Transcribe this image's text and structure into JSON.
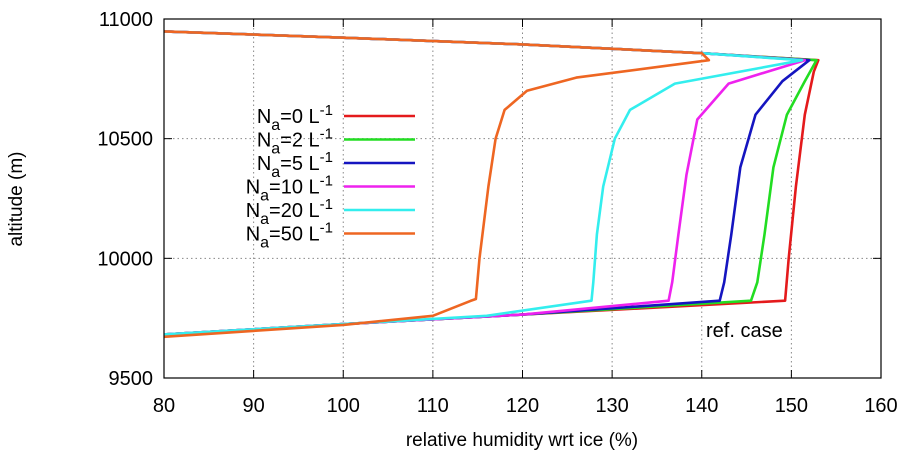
{
  "chart_data": {
    "type": "line",
    "title": "",
    "xlabel": "relative humidity wrt ice (%)",
    "ylabel": "altitude (m)",
    "xlim": [
      80,
      160
    ],
    "ylim": [
      9500,
      11000
    ],
    "xticks": [
      "80",
      "90",
      "100",
      "110",
      "120",
      "130",
      "140",
      "150",
      "160"
    ],
    "yticks": [
      "9500",
      "10000",
      "10500",
      "11000"
    ],
    "grid": true,
    "legend_position": "left",
    "annotation": "ref. case",
    "series": [
      {
        "name": "Na=0 L-1",
        "legend": {
          "base": "N",
          "sub": "a",
          "mid": "=0 L",
          "sup": "-1"
        },
        "color": "#e41a1c",
        "x": [
          80,
          100,
          120,
          149.3,
          149.7,
          150.5,
          151.5,
          152.5,
          153.0,
          140.0,
          120.0,
          100.0,
          80.0
        ],
        "y": [
          9682,
          9725,
          9765,
          9823,
          10000,
          10300,
          10600,
          10780,
          10828,
          10857,
          10894,
          10922,
          10948
        ]
      },
      {
        "name": "Na=2 L-1",
        "legend": {
          "base": "N",
          "sub": "a",
          "mid": "=2 L",
          "sup": "-1"
        },
        "color": "#22dd22",
        "x": [
          80,
          100,
          120,
          145.5,
          146.2,
          147.0,
          148.0,
          149.5,
          151.5,
          152.8,
          140.0,
          120.0,
          100.0,
          80.0
        ],
        "y": [
          9682,
          9725,
          9765,
          9823,
          9900,
          10100,
          10380,
          10600,
          10740,
          10828,
          10857,
          10894,
          10922,
          10948
        ]
      },
      {
        "name": "Na=5 L-1",
        "legend": {
          "base": "N",
          "sub": "a",
          "mid": "=5 L",
          "sup": "-1"
        },
        "color": "#1515c0",
        "x": [
          80,
          100,
          120,
          142.0,
          142.5,
          143.3,
          144.3,
          146.0,
          149.0,
          152.0,
          140.0,
          120.0,
          100.0,
          80.0
        ],
        "y": [
          9682,
          9725,
          9765,
          9823,
          9900,
          10100,
          10380,
          10600,
          10740,
          10828,
          10857,
          10894,
          10922,
          10948
        ]
      },
      {
        "name": "Na=10 L-1",
        "legend": {
          "base": "N",
          "sub": "a",
          "mid": "=10 L",
          "sup": "-1"
        },
        "color": "#ee22ee",
        "x": [
          80,
          100,
          120,
          136.3,
          136.7,
          137.4,
          138.3,
          139.5,
          143.0,
          151.5,
          140.0,
          120.0,
          100.0,
          80.0
        ],
        "y": [
          9682,
          9725,
          9765,
          9823,
          9900,
          10100,
          10350,
          10580,
          10730,
          10828,
          10857,
          10894,
          10922,
          10948
        ]
      },
      {
        "name": "Na=20 L-1",
        "legend": {
          "base": "N",
          "sub": "a",
          "mid": "=20 L",
          "sup": "-1"
        },
        "color": "#33eeee",
        "x": [
          80,
          100,
          116,
          127.7,
          127.9,
          128.3,
          129.0,
          130.3,
          132.0,
          137.0,
          151.2,
          140.0,
          120.0,
          100.0,
          80.0
        ],
        "y": [
          9682,
          9725,
          9760,
          9823,
          9900,
          10100,
          10300,
          10500,
          10620,
          10730,
          10828,
          10857,
          10894,
          10922,
          10948
        ]
      },
      {
        "name": "Na=50 L-1",
        "legend": {
          "base": "N",
          "sub": "a",
          "mid": "=50 L",
          "sup": "-1"
        },
        "color": "#ee6622",
        "x": [
          80,
          100,
          110,
          114.2,
          114.8,
          115.2,
          116.2,
          117.0,
          118.0,
          120.5,
          126.0,
          140.8,
          140.0,
          120.0,
          100.0,
          80.0
        ],
        "y": [
          9672,
          9722,
          9760,
          9822,
          9830,
          10000,
          10300,
          10500,
          10620,
          10700,
          10755,
          10828,
          10857,
          10894,
          10922,
          10948
        ]
      }
    ]
  }
}
